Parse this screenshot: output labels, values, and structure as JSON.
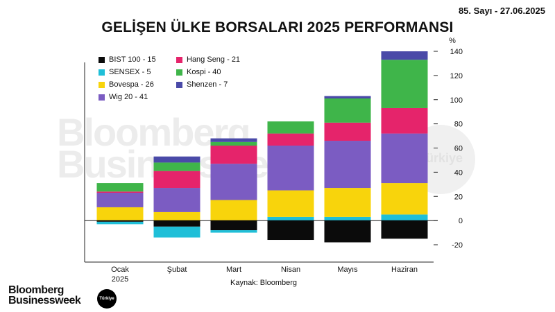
{
  "header": {
    "issue": "85. Sayı - 27.06.2025"
  },
  "watermark": {
    "line1": "Bloomberg",
    "line2": "Businessweek",
    "badge": "Türkiye"
  },
  "logo": {
    "line1": "Bloomberg",
    "line2": "Businessweek",
    "badge": "Türkiye"
  },
  "chart_data": {
    "type": "bar",
    "stacked": true,
    "title": "GELİŞEN ÜLKE BORSALARI 2025 PERFORMANSI",
    "ylabel": "%",
    "source": "Kaynak: Bloomberg",
    "ylim": [
      -20,
      140
    ],
    "yticks": [
      140,
      120,
      100,
      80,
      60,
      40,
      20,
      0,
      -20
    ],
    "y_axis_position": "right",
    "legend_position": "top-left",
    "categories": [
      "Ocak\n2025",
      "Şubat",
      "Mart",
      "Nisan",
      "Mayıs",
      "Haziran"
    ],
    "series": [
      {
        "name": "BIST 100 - 15",
        "color": "#0b0b0b",
        "values": [
          -1,
          -5,
          -8,
          -16,
          -18,
          -15
        ]
      },
      {
        "name": "SENSEX - 5",
        "color": "#1fbfd8",
        "values": [
          -2,
          -9,
          -2,
          3,
          3,
          5
        ]
      },
      {
        "name": "Bovespa - 26",
        "color": "#f8d40c",
        "values": [
          11,
          7,
          17,
          22,
          24,
          26
        ]
      },
      {
        "name": "Wig 20 - 41",
        "color": "#7b5cc2",
        "values": [
          12,
          20,
          30,
          37,
          39,
          41
        ]
      },
      {
        "name": "Hang Seng - 21",
        "color": "#e5246b",
        "values": [
          1,
          14,
          15,
          10,
          15,
          21
        ]
      },
      {
        "name": "Kospi - 40",
        "color": "#3fb54a",
        "values": [
          7,
          7,
          3,
          10,
          20,
          40
        ]
      },
      {
        "name": "Shenzen - 7",
        "color": "#4a4aa8",
        "values": [
          0,
          5,
          3,
          0,
          2,
          7
        ]
      }
    ]
  }
}
